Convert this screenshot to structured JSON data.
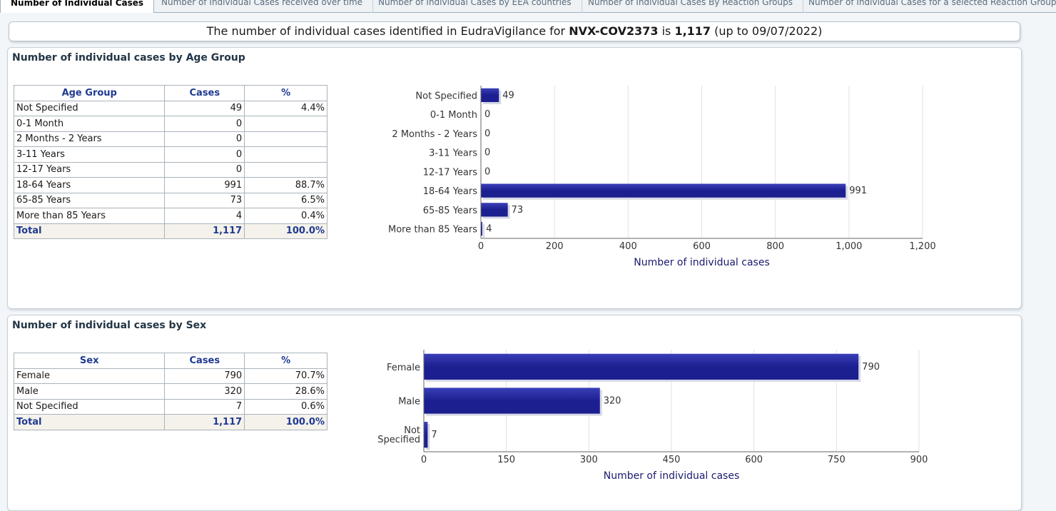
{
  "tabs": [
    {
      "label": "Number of Individual Cases"
    },
    {
      "label": "Number of Individual Cases received over time"
    },
    {
      "label": "Number of Individual Cases by EEA countries"
    },
    {
      "label": "Number of Individual Cases By Reaction Groups"
    },
    {
      "label": "Number of Individual Cases for a selected Reaction Group"
    }
  ],
  "banner": {
    "prefix": "The number of individual cases identified in EudraVigilance for ",
    "product": "NVX-COV2373",
    "middle": " is ",
    "count": "1,117",
    "suffix": " (up to 09/07/2022)"
  },
  "age_panel": {
    "title": "Number of individual cases by Age Group",
    "headers": [
      "Age Group",
      "Cases",
      "%"
    ],
    "rows": [
      [
        "Not Specified",
        "49",
        "4.4%"
      ],
      [
        "0-1 Month",
        "0",
        ""
      ],
      [
        "2 Months - 2 Years",
        "0",
        ""
      ],
      [
        "3-11 Years",
        "0",
        ""
      ],
      [
        "12-17 Years",
        "0",
        ""
      ],
      [
        "18-64 Years",
        "991",
        "88.7%"
      ],
      [
        "65-85 Years",
        "73",
        "6.5%"
      ],
      [
        "More than 85 Years",
        "4",
        "0.4%"
      ]
    ],
    "total": [
      "Total",
      "1,117",
      "100.0%"
    ]
  },
  "sex_panel": {
    "title": "Number of individual cases by Sex",
    "headers": [
      "Sex",
      "Cases",
      "%"
    ],
    "rows": [
      [
        "Female",
        "790",
        "70.7%"
      ],
      [
        "Male",
        "320",
        "28.6%"
      ],
      [
        "Not Specified",
        "7",
        "0.6%"
      ]
    ],
    "total": [
      "Total",
      "1,117",
      "100.0%"
    ]
  },
  "colors": {
    "bar": "#1c1f8f",
    "bar_light": "#3a3fb8",
    "axis_text": "#1a1a6e"
  },
  "chart_data": [
    {
      "type": "bar",
      "orientation": "horizontal",
      "categories": [
        "Not Specified",
        "0-1 Month",
        "2 Months - 2 Years",
        "3-11 Years",
        "12-17 Years",
        "18-64 Years",
        "65-85 Years",
        "More than 85 Years"
      ],
      "values": [
        49,
        0,
        0,
        0,
        0,
        991,
        73,
        4
      ],
      "xlabel": "Number of individual cases",
      "xlim": [
        0,
        1200
      ],
      "xticks": [
        "0",
        "200",
        "400",
        "600",
        "800",
        "1,000",
        "1,200"
      ],
      "grid": true
    },
    {
      "type": "bar",
      "orientation": "horizontal",
      "categories": [
        "Female",
        "Male",
        "Not Specified"
      ],
      "values": [
        790,
        320,
        7
      ],
      "xlabel": "Number of individual cases",
      "xlim": [
        0,
        900
      ],
      "xticks": [
        "0",
        "150",
        "300",
        "450",
        "600",
        "750",
        "900"
      ],
      "grid": true
    }
  ]
}
